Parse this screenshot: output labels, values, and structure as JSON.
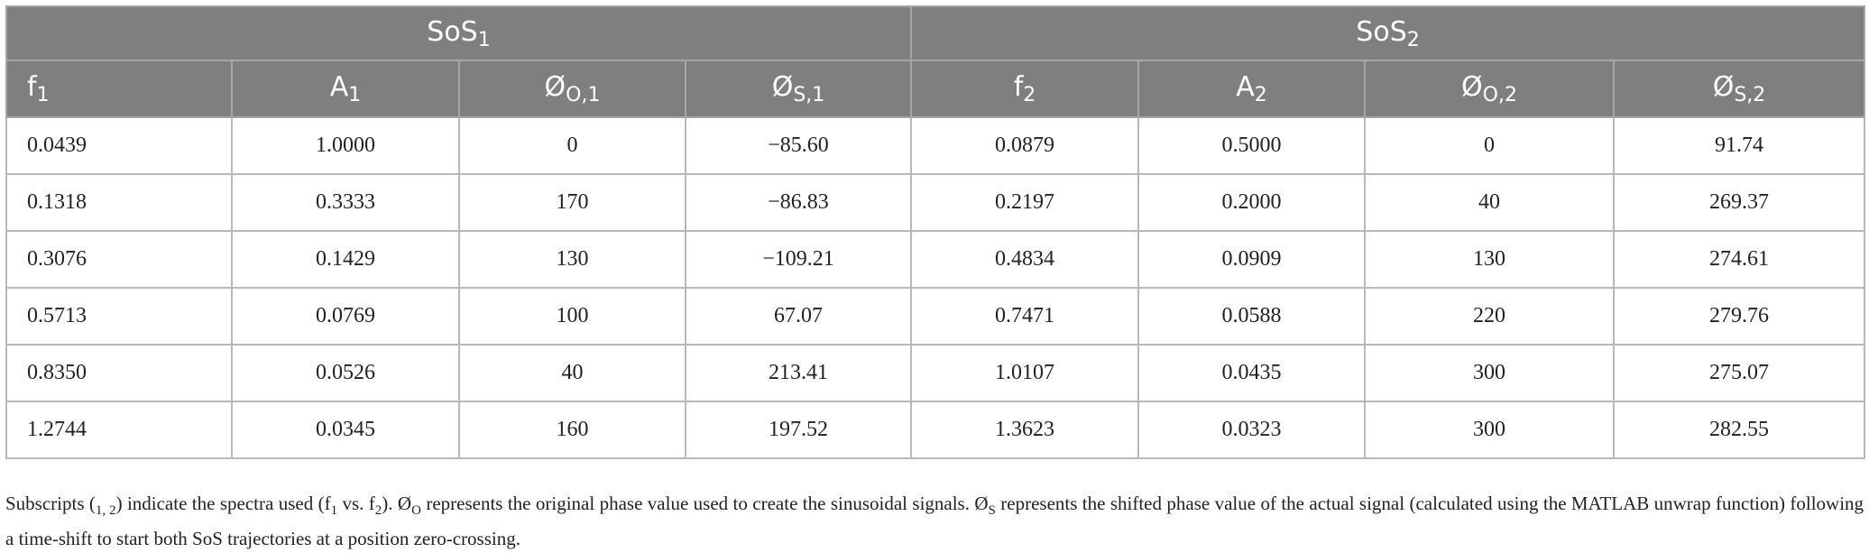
{
  "table": {
    "groups": [
      {
        "base": "SoS",
        "sub": "1"
      },
      {
        "base": "SoS",
        "sub": "2"
      }
    ],
    "columns": [
      {
        "base": "f",
        "sub": "1"
      },
      {
        "base": "A",
        "sub": "1"
      },
      {
        "base": "Ø",
        "sub": "O,1"
      },
      {
        "base": "Ø",
        "sub": "S,1"
      },
      {
        "base": "f",
        "sub": "2"
      },
      {
        "base": "A",
        "sub": "2"
      },
      {
        "base": "Ø",
        "sub": "O,2"
      },
      {
        "base": "Ø",
        "sub": "S,2"
      }
    ],
    "rows": [
      [
        "0.0439",
        "1.0000",
        "0",
        "−85.60",
        "0.0879",
        "0.5000",
        "0",
        "91.74"
      ],
      [
        "0.1318",
        "0.3333",
        "170",
        "−86.83",
        "0.2197",
        "0.2000",
        "40",
        "269.37"
      ],
      [
        "0.3076",
        "0.1429",
        "130",
        "−109.21",
        "0.4834",
        "0.0909",
        "130",
        "274.61"
      ],
      [
        "0.5713",
        "0.0769",
        "100",
        "67.07",
        "0.7471",
        "0.0588",
        "220",
        "279.76"
      ],
      [
        "0.8350",
        "0.0526",
        "40",
        "213.41",
        "1.0107",
        "0.0435",
        "300",
        "275.07"
      ],
      [
        "1.2744",
        "0.0345",
        "160",
        "197.52",
        "1.3623",
        "0.0323",
        "300",
        "282.55"
      ]
    ]
  },
  "footnote": {
    "t1": "Subscripts (",
    "s1": "1, 2",
    "t2": ") indicate the spectra used (f",
    "s2": "1",
    "t3": " vs. f",
    "s3": "2",
    "t4": "). Ø",
    "s4": "O",
    "t5": " represents the original phase value used to create the sinusoidal signals. Ø",
    "s5": "S",
    "t6": " represents the shifted phase value of the actual signal (calculated using the MATLAB unwrap function) following a time-shift to start both SoS trajectories at a position zero-crossing."
  }
}
